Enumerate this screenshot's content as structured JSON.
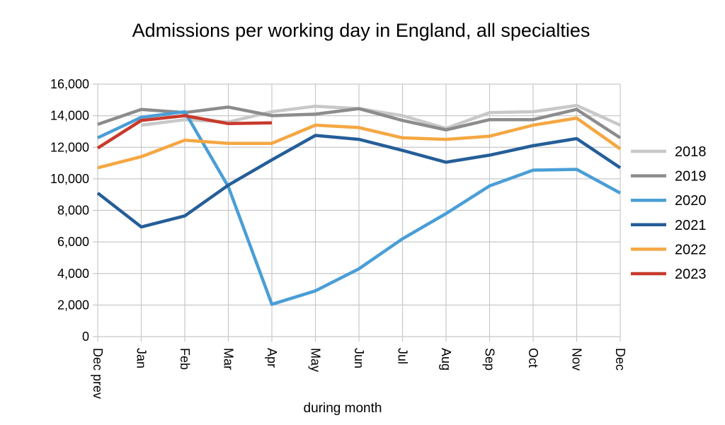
{
  "chart_data": {
    "type": "line",
    "title": "Admissions per working day in England, all specialties",
    "xlabel": "during  month",
    "ylabel": "",
    "ylim": [
      0,
      16000
    ],
    "yticks": [
      "0",
      "2,000",
      "4,000",
      "6,000",
      "8,000",
      "10,000",
      "12,000",
      "14,000",
      "16,000"
    ],
    "ytick_values": [
      0,
      2000,
      4000,
      6000,
      8000,
      10000,
      12000,
      14000,
      16000
    ],
    "categories": [
      "Dec prev",
      "Jan",
      "Feb",
      "Mar",
      "Apr",
      "May",
      "Jun",
      "Jul",
      "Aug",
      "Sep",
      "Oct",
      "Nov",
      "Dec"
    ],
    "grid": true,
    "legend_position": "right",
    "series": [
      {
        "name": "2018",
        "color": "#c8c8c8",
        "values": [
          null,
          13400,
          13750,
          13600,
          14250,
          14600,
          14450,
          14000,
          13200,
          14200,
          14250,
          14650,
          13400
        ]
      },
      {
        "name": "2019",
        "color": "#8c8c8c",
        "values": [
          13450,
          14400,
          14200,
          14550,
          14000,
          14100,
          14450,
          13700,
          13100,
          13750,
          13750,
          14400,
          12600
        ]
      },
      {
        "name": "2020",
        "color": "#4a9ed6",
        "values": [
          12600,
          13900,
          14250,
          9500,
          2050,
          2900,
          4300,
          6200,
          7800,
          9550,
          10550,
          10600,
          9100
        ]
      },
      {
        "name": "2021",
        "color": "#255e99",
        "values": [
          9100,
          6950,
          7650,
          9600,
          11200,
          12750,
          12500,
          11800,
          11050,
          11500,
          12100,
          12550,
          10700
        ]
      },
      {
        "name": "2022",
        "color": "#f5a742",
        "values": [
          10700,
          11400,
          12450,
          12250,
          12250,
          13400,
          13250,
          12600,
          12500,
          12700,
          13400,
          13850,
          11900
        ]
      },
      {
        "name": "2023",
        "color": "#c83a2c",
        "values": [
          11950,
          13700,
          14000,
          13500,
          13550,
          null,
          null,
          null,
          null,
          null,
          null,
          null,
          null
        ]
      }
    ]
  }
}
